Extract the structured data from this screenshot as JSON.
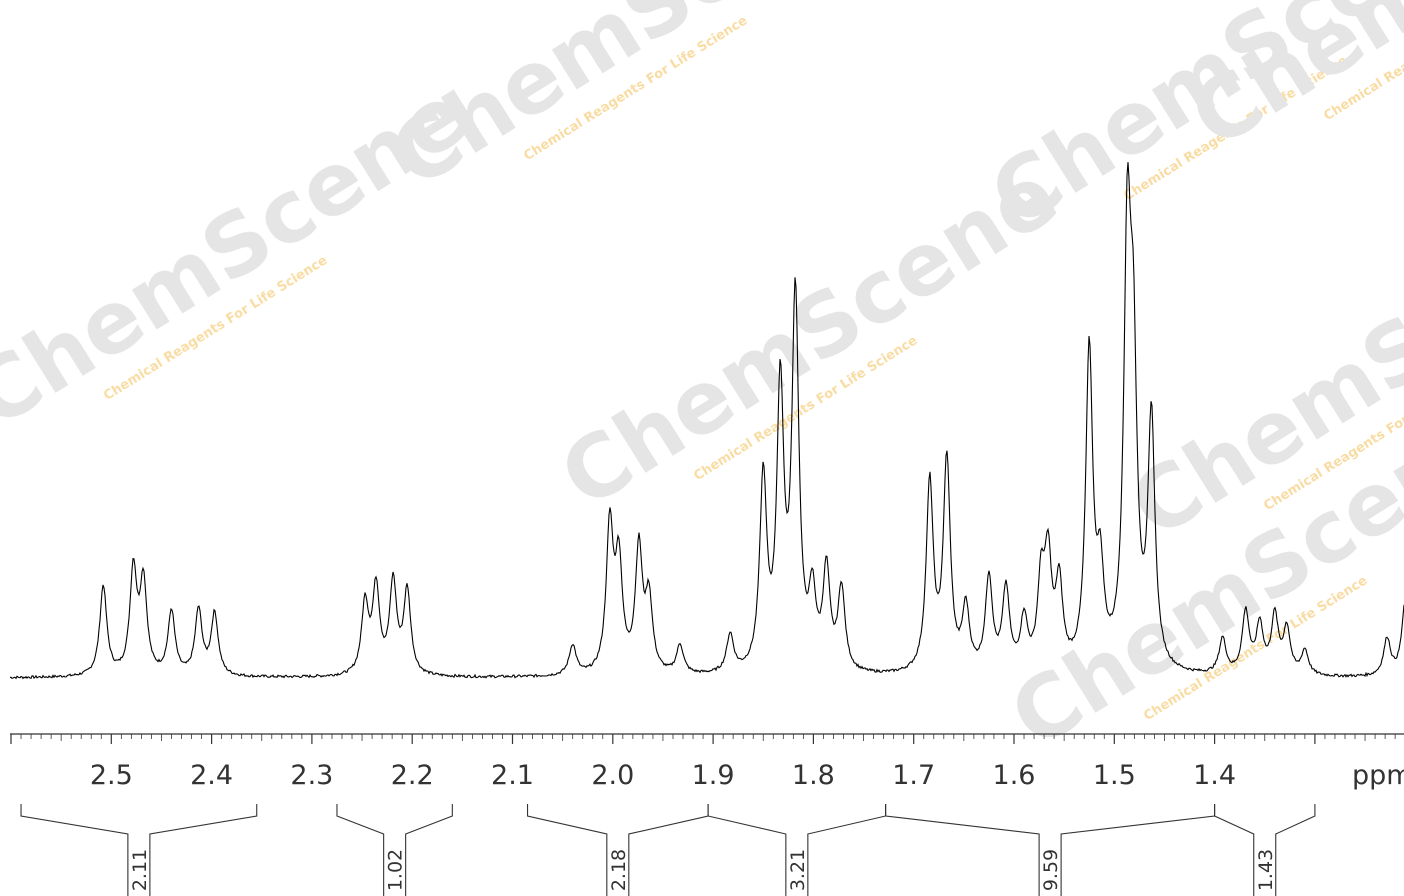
{
  "chart_data": {
    "type": "line",
    "title": "",
    "xlabel": "ppm",
    "ylabel": "",
    "x_reversed": true,
    "xlim": [
      2.6,
      1.3
    ],
    "ylim": [
      0,
      1
    ],
    "grid": false,
    "tick_labels": [
      "2.5",
      "2.4",
      "2.3",
      "2.2",
      "2.1",
      "2.0",
      "1.9",
      "1.8",
      "1.7",
      "1.6",
      "1.5",
      "1.4"
    ],
    "peaks": [
      {
        "ppm": 2.508,
        "h": 0.218
      },
      {
        "ppm": 2.478,
        "h": 0.252
      },
      {
        "ppm": 2.468,
        "h": 0.222
      },
      {
        "ppm": 2.44,
        "h": 0.155
      },
      {
        "ppm": 2.413,
        "h": 0.159
      },
      {
        "ppm": 2.397,
        "h": 0.15
      },
      {
        "ppm": 2.247,
        "h": 0.171
      },
      {
        "ppm": 2.236,
        "h": 0.208
      },
      {
        "ppm": 2.219,
        "h": 0.222
      },
      {
        "ppm": 2.205,
        "h": 0.203
      },
      {
        "ppm": 2.04,
        "h": 0.073
      },
      {
        "ppm": 2.003,
        "h": 0.354
      },
      {
        "ppm": 1.994,
        "h": 0.26
      },
      {
        "ppm": 1.974,
        "h": 0.3
      },
      {
        "ppm": 1.964,
        "h": 0.177
      },
      {
        "ppm": 1.933,
        "h": 0.07
      },
      {
        "ppm": 1.883,
        "h": 0.092
      },
      {
        "ppm": 1.85,
        "h": 0.464
      },
      {
        "ppm": 1.833,
        "h": 0.673
      },
      {
        "ppm": 1.818,
        "h": 0.898
      },
      {
        "ppm": 1.801,
        "h": 0.173
      },
      {
        "ppm": 1.787,
        "h": 0.241
      },
      {
        "ppm": 1.772,
        "h": 0.2
      },
      {
        "ppm": 1.684,
        "h": 0.458
      },
      {
        "ppm": 1.667,
        "h": 0.511
      },
      {
        "ppm": 1.648,
        "h": 0.152
      },
      {
        "ppm": 1.625,
        "h": 0.228
      },
      {
        "ppm": 1.608,
        "h": 0.199
      },
      {
        "ppm": 1.59,
        "h": 0.124
      },
      {
        "ppm": 1.573,
        "h": 0.204
      },
      {
        "ppm": 1.566,
        "h": 0.255
      },
      {
        "ppm": 1.555,
        "h": 0.203
      },
      {
        "ppm": 1.525,
        "h": 0.769
      },
      {
        "ppm": 1.514,
        "h": 0.213
      },
      {
        "ppm": 1.487,
        "h": 0.988
      },
      {
        "ppm": 1.481,
        "h": 0.652
      },
      {
        "ppm": 1.463,
        "h": 0.6
      },
      {
        "ppm": 1.392,
        "h": 0.086
      },
      {
        "ppm": 1.369,
        "h": 0.15
      },
      {
        "ppm": 1.355,
        "h": 0.118
      },
      {
        "ppm": 1.34,
        "h": 0.14
      },
      {
        "ppm": 1.328,
        "h": 0.11
      },
      {
        "ppm": 1.31,
        "h": 0.06
      },
      {
        "ppm": 1.228,
        "h": 0.09
      },
      {
        "ppm": 1.21,
        "h": 0.18
      }
    ],
    "integrals": [
      {
        "label": "2.11",
        "from": 2.59,
        "to": 2.355,
        "value": 2.11
      },
      {
        "label": "1.02",
        "from": 2.275,
        "to": 2.16,
        "value": 1.02
      },
      {
        "label": "2.18",
        "from": 2.085,
        "to": 1.905,
        "value": 2.18
      },
      {
        "label": "3.21",
        "from": 1.905,
        "to": 1.728,
        "value": 3.21
      },
      {
        "label": "9.59",
        "from": 1.728,
        "to": 1.4,
        "value": 9.59
      },
      {
        "label": "1.43",
        "from": 1.4,
        "to": 1.3,
        "value": 1.43
      }
    ]
  },
  "watermarks": {
    "brand": "ChemScene",
    "tagline": "Chemical Reagents For Life Science",
    "colors": {
      "orange": "#f5c05a",
      "gray": "#cfcfcf"
    }
  },
  "colors": {
    "spectrum": "#000000",
    "axis": "#333333"
  }
}
